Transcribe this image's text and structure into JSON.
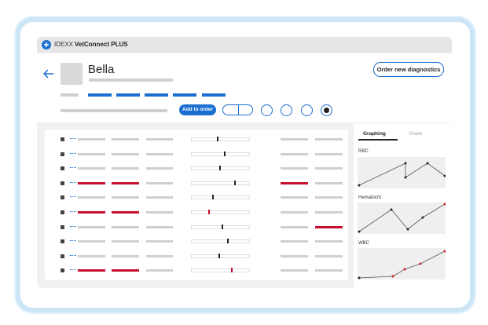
{
  "app_bar": {
    "brand": "IDEXX",
    "product": "VetConnect PLUS"
  },
  "patient": {
    "name": "Bella"
  },
  "buttons": {
    "order_new": "Order new diagnostics",
    "add_to_order": "Add to order"
  },
  "side_panel": {
    "tabs": [
      "Graphing",
      "Share"
    ],
    "graphs": [
      "RBC",
      "Hematocrit",
      "WBC"
    ]
  }
}
